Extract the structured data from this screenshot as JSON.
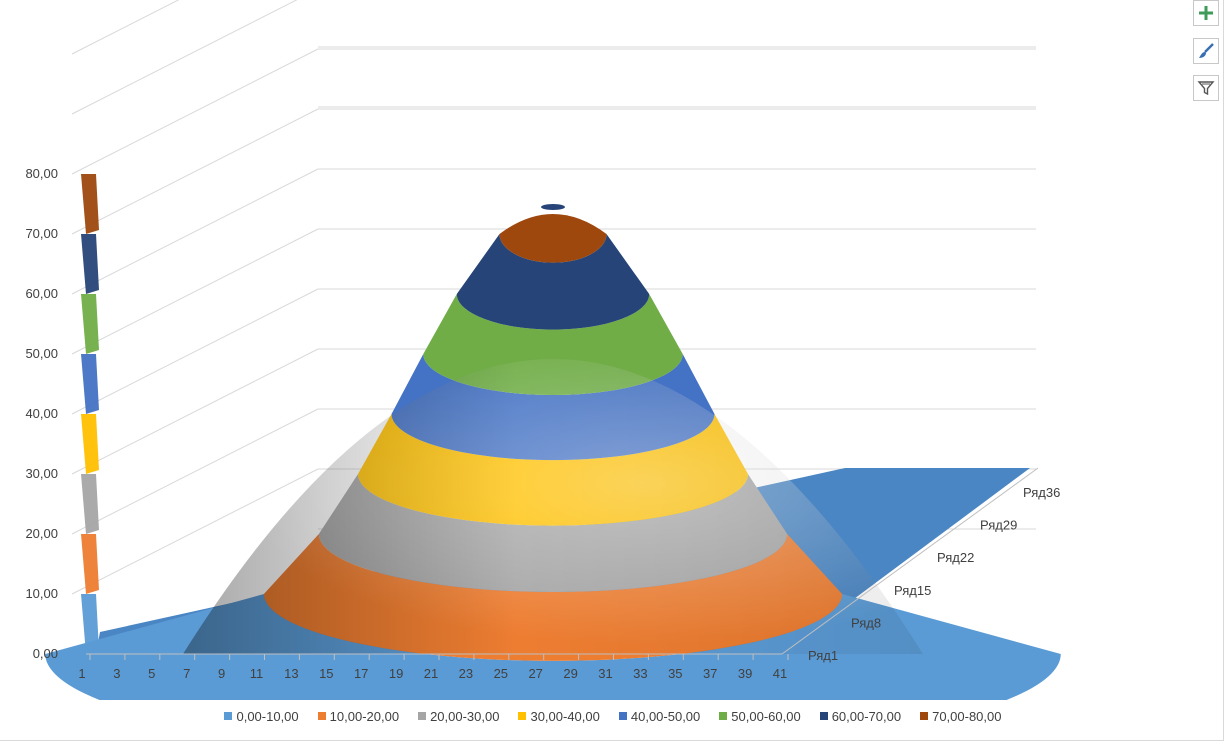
{
  "chart_data": {
    "type": "surface-3d",
    "title": "",
    "y_ticks": [
      "0,00",
      "10,00",
      "20,00",
      "30,00",
      "40,00",
      "50,00",
      "60,00",
      "70,00",
      "80,00"
    ],
    "ylim": [
      0,
      80
    ],
    "x_ticks": [
      "1",
      "3",
      "5",
      "7",
      "9",
      "11",
      "13",
      "15",
      "17",
      "19",
      "21",
      "23",
      "25",
      "27",
      "29",
      "31",
      "33",
      "35",
      "37",
      "39",
      "41"
    ],
    "depth_ticks": [
      "Ряд1",
      "Ряд8",
      "Ряд15",
      "Ряд22",
      "Ряд29",
      "Ряд36"
    ],
    "peak_value": 75,
    "legend_position": "bottom",
    "bands": [
      {
        "label": "0,00-10,00",
        "color": "#5b9bd5"
      },
      {
        "label": "10,00-20,00",
        "color": "#ed7d31"
      },
      {
        "label": "20,00-30,00",
        "color": "#a5a5a5"
      },
      {
        "label": "30,00-40,00",
        "color": "#ffc000"
      },
      {
        "label": "40,00-50,00",
        "color": "#4472c4"
      },
      {
        "label": "50,00-60,00",
        "color": "#70ad47"
      },
      {
        "label": "60,00-70,00",
        "color": "#264478"
      },
      {
        "label": "70,00-80,00",
        "color": "#9e480e"
      }
    ]
  },
  "toolbar": {
    "add_icon": "plus-icon",
    "style_icon": "paintbrush-icon",
    "filter_icon": "filter-icon"
  }
}
